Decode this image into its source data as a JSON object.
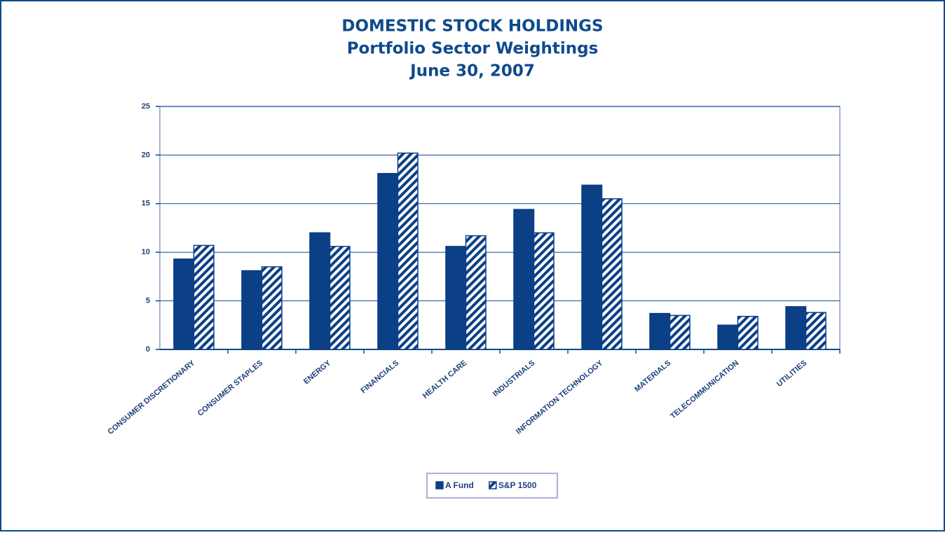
{
  "chart_data": {
    "type": "bar",
    "title": [
      "DOMESTIC STOCK HOLDINGS",
      "Portfolio Sector Weightings",
      "June 30, 2007"
    ],
    "categories": [
      "CONSUMER DISCRETIONARY",
      "CONSUMER STAPLES",
      "ENERGY",
      "FINANCIALS",
      "HEALTH CARE",
      "INDUSTRIALS",
      "INFORMATION TECHNOLOGY",
      "MATERIALS",
      "TELECOMMUNICATION",
      "UTILITIES"
    ],
    "series": [
      {
        "name": "A Fund",
        "color": "#0b3f86",
        "pattern": "solid",
        "values": [
          9.3,
          8.1,
          12.0,
          18.1,
          10.6,
          14.4,
          16.9,
          3.7,
          2.5,
          4.4
        ]
      },
      {
        "name": "S&P 1500",
        "color": "#0b3f86",
        "pattern": "hatch",
        "values": [
          10.7,
          8.5,
          10.6,
          20.2,
          11.7,
          12.0,
          15.5,
          3.5,
          3.4,
          3.8
        ]
      }
    ],
    "ylim": [
      0,
      25
    ],
    "yticks": [
      0,
      5,
      10,
      15,
      20,
      25
    ],
    "grid": true,
    "legend": "bottom"
  }
}
